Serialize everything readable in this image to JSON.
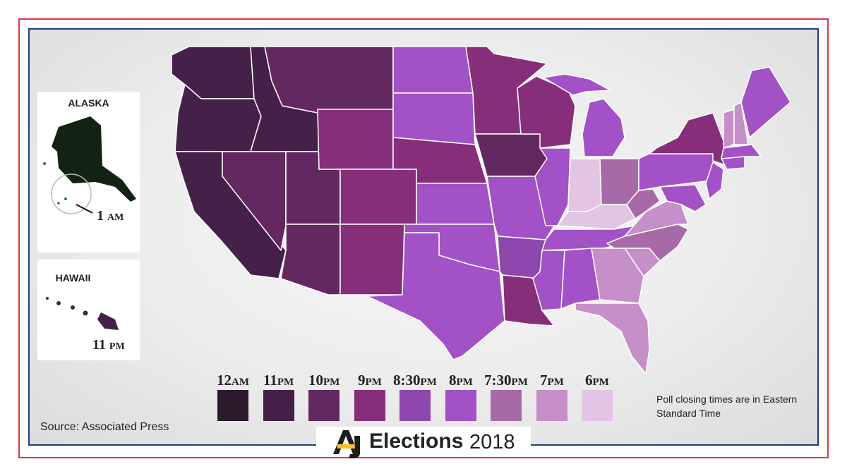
{
  "legend": {
    "items": [
      {
        "num": "12",
        "suffix": "AM",
        "color": "#2a1a2c"
      },
      {
        "num": "11",
        "suffix": "PM",
        "color": "#45214a"
      },
      {
        "num": "10",
        "suffix": "PM",
        "color": "#63285f"
      },
      {
        "num": "9",
        "suffix": "PM",
        "color": "#862e7a"
      },
      {
        "num": "8:30",
        "suffix": "PM",
        "color": "#8e47ad"
      },
      {
        "num": "8",
        "suffix": "PM",
        "color": "#a251c6"
      },
      {
        "num": "7:30",
        "suffix": "PM",
        "color": "#a86aa6"
      },
      {
        "num": "7",
        "suffix": "PM",
        "color": "#c68fc9"
      },
      {
        "num": "6",
        "suffix": "PM",
        "color": "#e2c5e3"
      }
    ],
    "note": "Poll closing times are in Eastern Standard Time"
  },
  "insets": {
    "alaska": {
      "label": "ALASKA",
      "time_num": "1",
      "time_suffix": "AM"
    },
    "hawaii": {
      "label": "HAWAII",
      "time_num": "11",
      "time_suffix": "PM"
    }
  },
  "source": "Source: Associated Press",
  "branding": {
    "logo": "AJ",
    "title": "Elections",
    "year": "2018"
  },
  "colors": {
    "outer_frame": "#e2334e",
    "inner_frame": "#233a82",
    "alaska": "#132313",
    "logo_yellow": "#f7c423"
  }
}
